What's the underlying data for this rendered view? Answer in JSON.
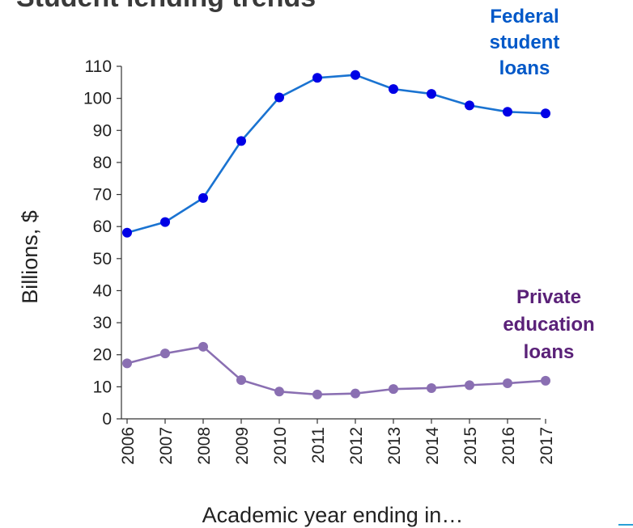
{
  "page": {
    "title_partial": "Student lending trends"
  },
  "chart_data": {
    "type": "line",
    "title": "Student lending trends",
    "xlabel": "Academic year ending in…",
    "ylabel": "Billions, $",
    "categories": [
      "2006",
      "2007",
      "2008",
      "2009",
      "2010",
      "2011",
      "2012",
      "2013",
      "2014",
      "2015",
      "2016",
      "2017"
    ],
    "yticks": [
      "0",
      "10",
      "20",
      "30",
      "40",
      "50",
      "60",
      "70",
      "80",
      "90",
      "100",
      "110"
    ],
    "ylim": [
      0,
      110
    ],
    "grid": false,
    "legend": "direct labels at right",
    "series": [
      {
        "name": "Federal student loans",
        "label_lines": [
          "Federal",
          "student",
          "loans"
        ],
        "color": "#0058C8",
        "line_color": "#1A73D1",
        "values": [
          58.1,
          61.4,
          68.9,
          86.7,
          100.3,
          106.4,
          107.3,
          102.9,
          101.4,
          97.8,
          95.8,
          95.3
        ]
      },
      {
        "name": "Private education loans",
        "label_lines": [
          "Private",
          "education",
          "loans"
        ],
        "color": "#5A2178",
        "line_color": "#8A6FB2",
        "values": [
          17.3,
          20.4,
          22.5,
          12.1,
          8.5,
          7.6,
          7.9,
          9.3,
          9.6,
          10.5,
          11.1,
          11.9
        ]
      }
    ]
  }
}
